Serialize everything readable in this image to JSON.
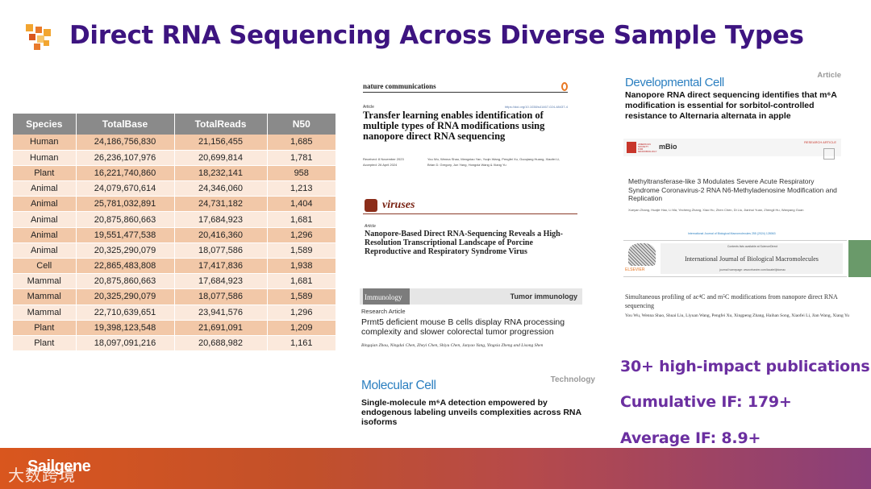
{
  "title": "Direct RNA Sequencing Across Diverse Sample Types",
  "table": {
    "headers": [
      "Species",
      "TotalBase",
      "TotalReads",
      "N50"
    ],
    "rows": [
      [
        "Human",
        "24,186,756,830",
        "21,156,455",
        "1,685"
      ],
      [
        "Human",
        "26,236,107,976",
        "20,699,814",
        "1,781"
      ],
      [
        "Plant",
        "16,221,740,860",
        "18,232,141",
        "958"
      ],
      [
        "Animal",
        "24,079,670,614",
        "24,346,060",
        "1,213"
      ],
      [
        "Animal",
        "25,781,032,891",
        "24,731,182",
        "1,404"
      ],
      [
        "Animal",
        "20,875,860,663",
        "17,684,923",
        "1,681"
      ],
      [
        "Animal",
        "19,551,477,538",
        "20,416,360",
        "1,296"
      ],
      [
        "Animal",
        "20,325,290,079",
        "18,077,586",
        "1,589"
      ],
      [
        "Cell",
        "22,865,483,808",
        "17,417,836",
        "1,938"
      ],
      [
        "Mammal",
        "20,875,860,663",
        "17,684,923",
        "1,681"
      ],
      [
        "Mammal",
        "20,325,290,079",
        "18,077,586",
        "1,589"
      ],
      [
        "Mammal",
        "22,710,639,651",
        "23,941,576",
        "1,296"
      ],
      [
        "Plant",
        "19,398,123,548",
        "21,691,091",
        "1,209"
      ],
      [
        "Plant",
        "18,097,091,216",
        "20,688,982",
        "1,161"
      ]
    ]
  },
  "papers": {
    "nc": {
      "journal": "nature communications",
      "type": "Article",
      "doi": "https://doi.org/10.1038/s41467-024-48437-4",
      "title": "Transfer learning enables identification of multiple types of RNA modifications using nanopore direct RNA sequencing",
      "received": "Received: 8 November 2023",
      "accepted": "Accepted: 26 April 2024",
      "authors": "You Wu, Wenna Shao, Mengxiao Yan, Yuqin Wang, Pengfei Xu, Guoqiang Huang, Xiaofei Li, Brian D. Gregory, Jun Yang, Hongxia Wang & Xiang Yu"
    },
    "viruses": {
      "journal": "viruses",
      "type": "Article",
      "title": "Nanopore-Based Direct RNA-Sequencing Reveals a High-Resolution Transcriptional Landscape of Porcine Reproductive and Respiratory Syndrome Virus"
    },
    "immunology": {
      "journal": "Immunology",
      "tag": "Tumor immunology",
      "type": "Research Article",
      "title": "Prmt5 deficient mouse B cells display RNA processing complexity and slower colorectal tumor progression",
      "authors": "Bingqian Zhou, Ningdai Chen, Zheyi Chen, Shiyu Chen, Junyao Yang, Yingxia Zheng and Lisong Shen"
    },
    "molecular_cell": {
      "journal": "Molecular Cell",
      "tag": "Technology",
      "title": "Single-molecule m⁶A detection empowered by endogenous labeling unveils complexities across RNA isoforms"
    },
    "dev_cell": {
      "journal": "Developmental Cell",
      "tag": "Article",
      "title": "Nanopore RNA direct sequencing identifies that m⁶A modification is essential for sorbitol-controlled resistance to Alternaria alternata in apple"
    },
    "mbio": {
      "journal": "mBio",
      "society": "AMERICAN SOCIETY FOR MICROBIOLOGY",
      "tag": "RESEARCH ARTICLE",
      "title": "Methyltransferase-like 3 Modulates Severe Acute Respiratory Syndrome Coronavirus-2 RNA N6-Methyladenosine Modification and Replication",
      "authors": "Xueyan Zhang, Huajie Hao, Li Ma, Yecheng Zhang, Xiao Hu, Zhen Chen, Di Liu, Jianhui Yuan, Zhengli Hu, Wanyang Guan"
    },
    "ijbm": {
      "top": "International Journal of Biological Macromolecules 255 (2024) 128063",
      "contents": "Contents lists available at ScienceDirect",
      "journal": "International Journal of Biological Macromolecules",
      "homepage": "journal homepage: www.elsevier.com/locate/ijbiomac",
      "publisher": "ELSEVIER",
      "title": "Simultaneous profiling of ac⁴C and m⁵C modifications from nanopore direct RNA sequencing",
      "authors": "You Wu, Wenna Shao, Shuai Liu, Liyuan Wang, Pengfei Xu, Xingpeng Zhang, Haihan Song, Xiaofei Li, Jian Wang, Xiang Yu"
    }
  },
  "stats": {
    "publications": "30+ high-impact publications",
    "cumulative_if": "Cumulative IF: 179+",
    "average_if": "Average IF: 8.9+"
  },
  "footer": {
    "brand": "Sailgene",
    "watermark": "大数跨境"
  },
  "colors": {
    "title": "#3d1480",
    "stats": "#6b2fa0",
    "table_header": "#8a8a8a",
    "row_dark": "#f2c8a8",
    "row_light": "#fbe9dc",
    "journal_blue": "#2b7fc0"
  }
}
